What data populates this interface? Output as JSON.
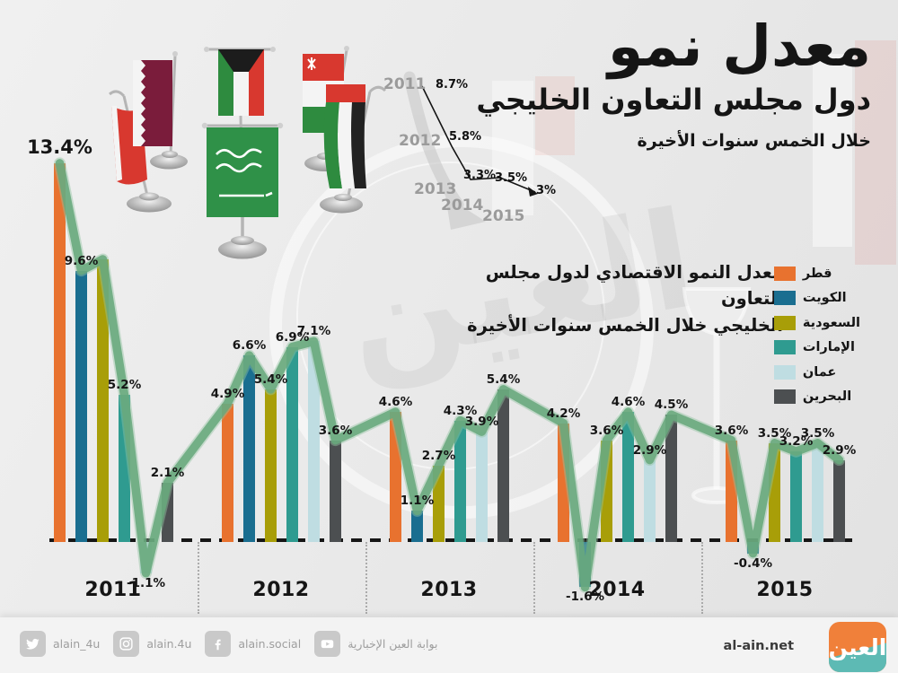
{
  "title": {
    "main": "معدل نمو",
    "sub": "دول مجلس التعاون الخليجي",
    "tagline": "خلال الخمس سنوات الأخيرة"
  },
  "description": {
    "line1": "معدل النمو الاقتصادي لدول مجلس التعاون",
    "line2": "الخليجي خلال الخمس سنوات الأخيرة"
  },
  "mini_chart": {
    "type": "line",
    "years": [
      "2011",
      "2012",
      "2013",
      "2014",
      "2015"
    ],
    "values": [
      8.7,
      5.8,
      3.3,
      3.5,
      3
    ],
    "labels": [
      "8.7%",
      "5.8%",
      "3.3%",
      "3.5%",
      "3%"
    ]
  },
  "chart_data": {
    "type": "bar",
    "title": "معدل نمو دول مجلس التعاون الخليجي خلال الخمس سنوات الأخيرة",
    "categories": [
      "2011",
      "2012",
      "2013",
      "2014",
      "2015"
    ],
    "unit": "%",
    "ylim": [
      -2,
      14
    ],
    "baseline_dashed": true,
    "trend_line": {
      "color": "#68a87c",
      "follows": "bar-tops"
    },
    "series": [
      {
        "key": "qatar",
        "name": "قطر",
        "color": "#E8722F",
        "values": [
          13.4,
          4.9,
          4.6,
          4.2,
          3.6
        ],
        "labels": [
          "13.4%",
          "4.9%",
          "4.6%",
          "4.2%",
          "3.6%"
        ]
      },
      {
        "key": "kuwait",
        "name": "الكويت",
        "color": "#1A6E90",
        "values": [
          9.6,
          6.6,
          1.1,
          -1.6,
          -0.4
        ],
        "labels": [
          "9.6%",
          "6.6%",
          "1.1%",
          "-1.6%",
          "-0.4%"
        ]
      },
      {
        "key": "saudi",
        "name": "السعودية",
        "color": "#A89E08",
        "values": [
          10.0,
          5.4,
          2.7,
          3.6,
          3.5
        ],
        "labels": [
          "",
          "5.4%",
          "2.7%",
          "3.6%",
          "3.5%"
        ]
      },
      {
        "key": "uae",
        "name": "الإمارات",
        "color": "#2F9B90",
        "values": [
          5.2,
          6.9,
          4.3,
          4.6,
          3.2
        ],
        "labels": [
          "5.2%",
          "6.9%",
          "4.3%",
          "4.6%",
          "3.2%"
        ]
      },
      {
        "key": "oman",
        "name": "عمان",
        "color": "#BFDDE2",
        "values": [
          -1.1,
          7.1,
          3.9,
          2.9,
          3.5
        ],
        "labels": [
          "-1.1%",
          "7.1%",
          "3.9%",
          "2.9%",
          "3.5%"
        ]
      },
      {
        "key": "bahrain",
        "name": "البحرين",
        "color": "#4C4F51",
        "values": [
          2.1,
          3.6,
          5.4,
          4.5,
          2.9
        ],
        "labels": [
          "2.1%",
          "3.6%",
          "5.4%",
          "4.5%",
          "2.9%"
        ]
      }
    ]
  },
  "decor": {
    "flags": [
      "bahrain",
      "qatar",
      "kuwait",
      "saudi",
      "oman",
      "uae"
    ],
    "watermark_text": "العين"
  },
  "footer": {
    "social": [
      {
        "icon": "twitter-icon",
        "label": "alain_4u"
      },
      {
        "icon": "instagram-icon",
        "label": "alain.4u"
      },
      {
        "icon": "facebook-icon",
        "label": "alain.social"
      },
      {
        "icon": "youtube-icon",
        "label": "بوابة العين الإخبارية"
      }
    ],
    "website": "al-ain.net",
    "logo_text": "العين"
  }
}
